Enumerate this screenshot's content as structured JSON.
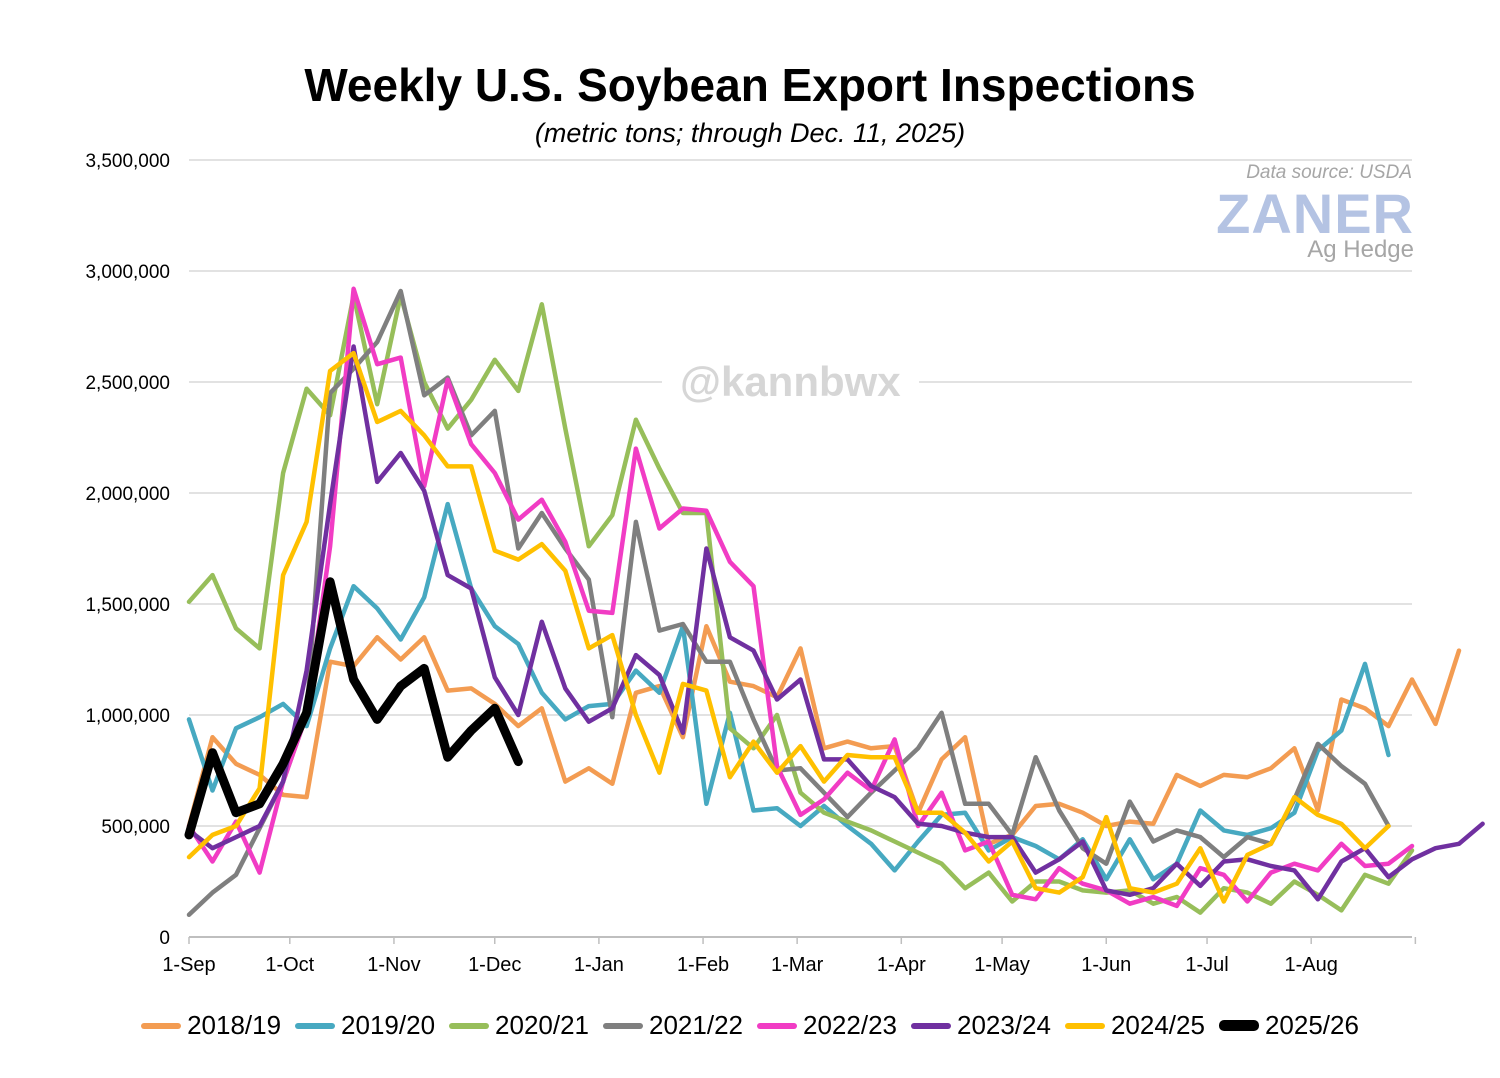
{
  "chart_data": {
    "type": "line",
    "title": "Weekly U.S. Soybean Export Inspections",
    "subtitle": "(metric tons; through Dec. 11, 2025)",
    "source_note": "Data source: USDA",
    "logo": {
      "main": "ZANER",
      "sub": "Ag Hedge"
    },
    "watermark": "@kannbwx",
    "ylim": [
      0,
      3500000
    ],
    "y_ticks": [
      {
        "value": 0,
        "label": "0"
      },
      {
        "value": 500000,
        "label": "500,000"
      },
      {
        "value": 1000000,
        "label": "1,000,000"
      },
      {
        "value": 1500000,
        "label": "1,500,000"
      },
      {
        "value": 2000000,
        "label": "2,000,000"
      },
      {
        "value": 2500000,
        "label": "2,500,000"
      },
      {
        "value": 3000000,
        "label": "3,000,000"
      },
      {
        "value": 3500000,
        "label": "3,500,000"
      }
    ],
    "x_tick_labels": [
      "1-Sep",
      "1-Oct",
      "1-Nov",
      "1-Dec",
      "1-Jan",
      "1-Feb",
      "1-Mar",
      "1-Apr",
      "1-May",
      "1-Jun",
      "1-Jul",
      "1-Aug"
    ],
    "x_unit": "week of marketing year (Sep 1 = week 0)",
    "grid": true,
    "legend_position": "bottom",
    "series": [
      {
        "name": "2018/19",
        "color": "#f39c52",
        "bold": false,
        "values": [
          500000,
          900000,
          780000,
          730000,
          640000,
          630000,
          1240000,
          1220000,
          1350000,
          1250000,
          1350000,
          1110000,
          1120000,
          1050000,
          950000,
          1030000,
          700000,
          760000,
          690000,
          1100000,
          1130000,
          900000,
          1400000,
          1150000,
          1130000,
          1080000,
          1300000,
          850000,
          880000,
          850000,
          860000,
          560000,
          800000,
          900000,
          420000,
          460000,
          590000,
          600000,
          560000,
          500000,
          520000,
          510000,
          730000,
          680000,
          730000,
          720000,
          760000,
          850000,
          570000,
          1070000,
          1030000,
          950000,
          1160000,
          960000,
          1290000
        ]
      },
      {
        "name": "2019/20",
        "color": "#47a9c1",
        "bold": false,
        "values": [
          980000,
          660000,
          940000,
          990000,
          1050000,
          950000,
          1300000,
          1580000,
          1480000,
          1340000,
          1530000,
          1950000,
          1570000,
          1400000,
          1320000,
          1100000,
          980000,
          1040000,
          1050000,
          1200000,
          1100000,
          1400000,
          600000,
          1010000,
          570000,
          580000,
          500000,
          590000,
          500000,
          420000,
          300000,
          430000,
          550000,
          560000,
          390000,
          450000,
          410000,
          350000,
          440000,
          260000,
          440000,
          260000,
          330000,
          570000,
          480000,
          460000,
          490000,
          560000,
          840000,
          930000,
          1230000,
          820000
        ]
      },
      {
        "name": "2020/21",
        "color": "#97be5a",
        "bold": false,
        "values": [
          1510000,
          1630000,
          1390000,
          1300000,
          2090000,
          2470000,
          2350000,
          2890000,
          2400000,
          2890000,
          2500000,
          2290000,
          2420000,
          2600000,
          2460000,
          2850000,
          2290000,
          1760000,
          1900000,
          2330000,
          2110000,
          1910000,
          1910000,
          940000,
          850000,
          1000000,
          650000,
          560000,
          520000,
          480000,
          430000,
          380000,
          330000,
          220000,
          290000,
          160000,
          250000,
          250000,
          210000,
          200000,
          210000,
          150000,
          180000,
          110000,
          220000,
          200000,
          150000,
          250000,
          190000,
          120000,
          280000,
          240000,
          390000
        ]
      },
      {
        "name": "2021/22",
        "color": "#7f7f7f",
        "bold": false,
        "values": [
          100000,
          200000,
          280000,
          490000,
          700000,
          1000000,
          2450000,
          2560000,
          2680000,
          2910000,
          2440000,
          2520000,
          2260000,
          2370000,
          1750000,
          1910000,
          1750000,
          1610000,
          990000,
          1870000,
          1380000,
          1410000,
          1240000,
          1240000,
          980000,
          750000,
          760000,
          650000,
          540000,
          650000,
          750000,
          850000,
          1010000,
          600000,
          600000,
          460000,
          810000,
          570000,
          400000,
          330000,
          610000,
          430000,
          480000,
          450000,
          360000,
          450000,
          420000,
          620000,
          870000,
          770000,
          690000,
          500000
        ]
      },
      {
        "name": "2022/23",
        "color": "#f13cc4",
        "bold": false,
        "values": [
          500000,
          340000,
          520000,
          290000,
          700000,
          1000000,
          1760000,
          2920000,
          2580000,
          2610000,
          2030000,
          2510000,
          2220000,
          2090000,
          1880000,
          1970000,
          1780000,
          1470000,
          1460000,
          2200000,
          1840000,
          1930000,
          1920000,
          1690000,
          1580000,
          770000,
          550000,
          620000,
          740000,
          660000,
          890000,
          500000,
          650000,
          390000,
          430000,
          190000,
          170000,
          310000,
          240000,
          210000,
          150000,
          180000,
          140000,
          310000,
          280000,
          160000,
          290000,
          330000,
          300000,
          420000,
          320000,
          330000,
          410000
        ]
      },
      {
        "name": "2023/24",
        "color": "#7030a0",
        "bold": false,
        "values": [
          480000,
          400000,
          450000,
          500000,
          700000,
          1200000,
          1950000,
          2660000,
          2050000,
          2180000,
          2010000,
          1630000,
          1570000,
          1170000,
          1000000,
          1420000,
          1120000,
          970000,
          1030000,
          1270000,
          1180000,
          920000,
          1750000,
          1350000,
          1290000,
          1070000,
          1160000,
          800000,
          800000,
          680000,
          630000,
          510000,
          500000,
          470000,
          450000,
          450000,
          290000,
          350000,
          430000,
          210000,
          190000,
          220000,
          330000,
          230000,
          340000,
          350000,
          320000,
          300000,
          170000,
          340000,
          400000,
          270000,
          350000,
          400000,
          420000,
          510000
        ]
      },
      {
        "name": "2024/25",
        "color": "#ffc000",
        "bold": false,
        "values": [
          360000,
          460000,
          500000,
          670000,
          1630000,
          1870000,
          2550000,
          2630000,
          2320000,
          2370000,
          2260000,
          2120000,
          2120000,
          1740000,
          1700000,
          1770000,
          1650000,
          1300000,
          1360000,
          1000000,
          740000,
          1140000,
          1110000,
          720000,
          880000,
          740000,
          860000,
          700000,
          820000,
          810000,
          810000,
          560000,
          560000,
          470000,
          340000,
          430000,
          220000,
          200000,
          270000,
          540000,
          220000,
          200000,
          240000,
          400000,
          160000,
          370000,
          420000,
          630000,
          550000,
          510000,
          400000,
          500000
        ]
      },
      {
        "name": "2025/26",
        "color": "#000000",
        "bold": true,
        "values": [
          460000,
          830000,
          560000,
          600000,
          780000,
          1010000,
          1600000,
          1160000,
          980000,
          1130000,
          1210000,
          810000,
          930000,
          1030000,
          790000
        ]
      }
    ]
  }
}
